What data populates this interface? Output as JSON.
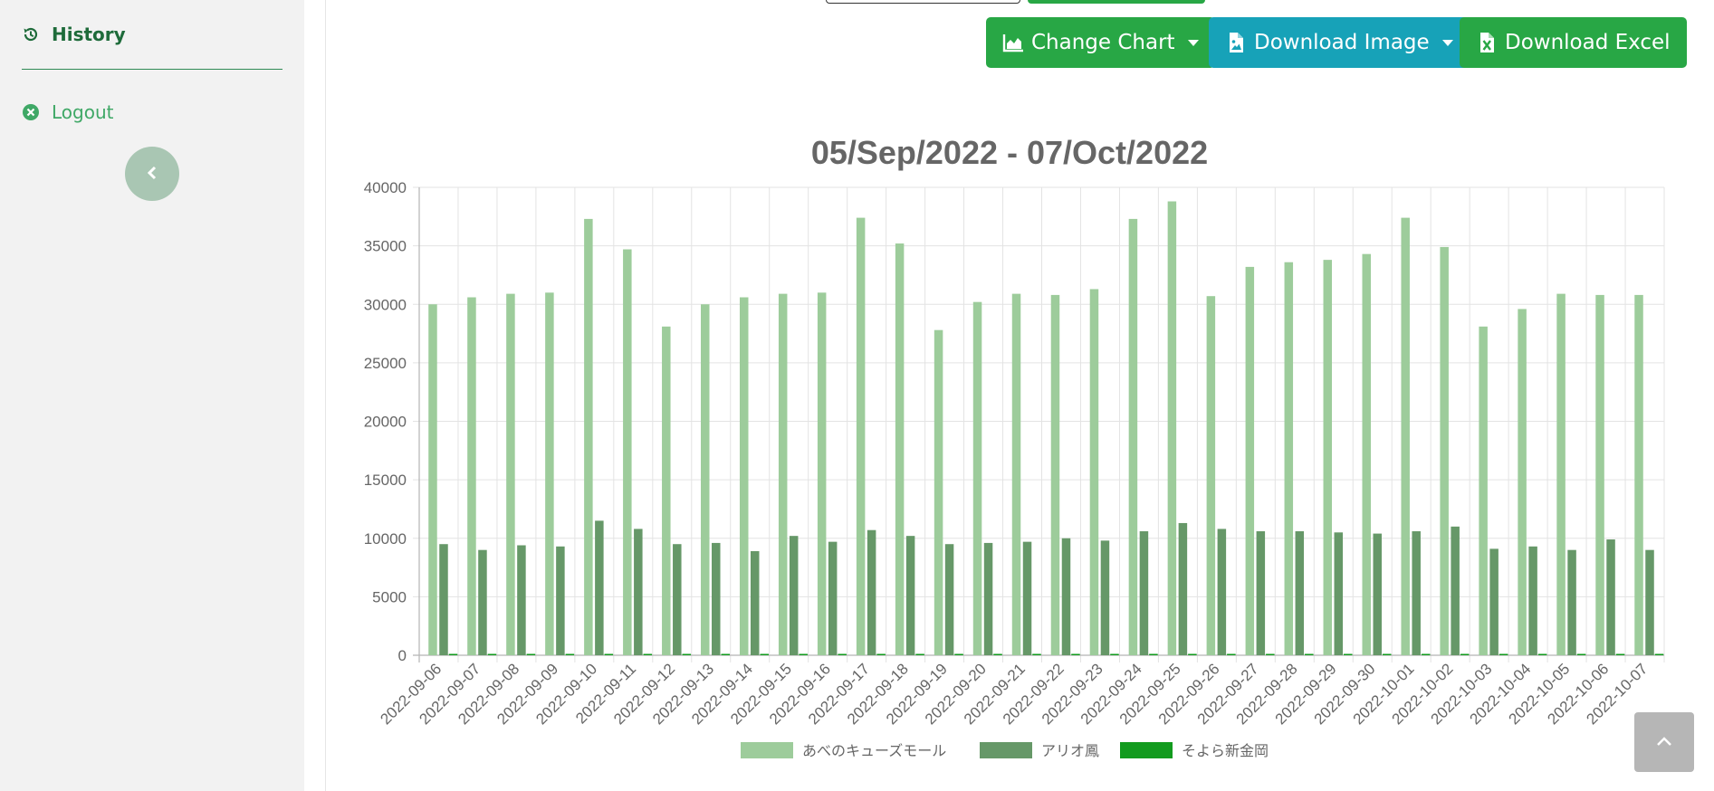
{
  "sidebar": {
    "history_label": "History",
    "logout_label": "Logout"
  },
  "toolbar": {
    "change_chart_label": "Change Chart",
    "download_image_label": "Download Image",
    "download_excel_label": "Download Excel"
  },
  "colors": {
    "accent_green": "#28a745",
    "accent_teal": "#17a2b8",
    "series_1": "#9dcc9b",
    "series_2": "#669868",
    "series_3": "#129b1e"
  },
  "chart_data": {
    "type": "bar",
    "title": "05/Sep/2022 - 07/Oct/2022",
    "xlabel": "",
    "ylabel": "",
    "ylim": [
      0,
      40000
    ],
    "yticks": [
      0,
      5000,
      10000,
      15000,
      20000,
      25000,
      30000,
      35000,
      40000
    ],
    "grid": true,
    "legend": "bottom",
    "categories": [
      "2022-09-06",
      "2022-09-07",
      "2022-09-08",
      "2022-09-09",
      "2022-09-10",
      "2022-09-11",
      "2022-09-12",
      "2022-09-13",
      "2022-09-14",
      "2022-09-15",
      "2022-09-16",
      "2022-09-17",
      "2022-09-18",
      "2022-09-19",
      "2022-09-20",
      "2022-09-21",
      "2022-09-22",
      "2022-09-23",
      "2022-09-24",
      "2022-09-25",
      "2022-09-26",
      "2022-09-27",
      "2022-09-28",
      "2022-09-29",
      "2022-09-30",
      "2022-10-01",
      "2022-10-02",
      "2022-10-03",
      "2022-10-04",
      "2022-10-05",
      "2022-10-06",
      "2022-10-07"
    ],
    "series": [
      {
        "name": "あべのキューズモール",
        "color": "#9dcc9b",
        "values": [
          30000,
          30600,
          30900,
          31000,
          37300,
          34700,
          28100,
          30000,
          30600,
          30900,
          31000,
          37400,
          35200,
          27800,
          30200,
          30900,
          30800,
          31300,
          37300,
          38800,
          30700,
          33200,
          33600,
          33800,
          34300,
          37400,
          34900,
          28100,
          29600,
          30900,
          30800,
          30800
        ]
      },
      {
        "name": "アリオ鳳",
        "color": "#669868",
        "values": [
          9500,
          9000,
          9400,
          9300,
          11500,
          10800,
          9500,
          9600,
          8900,
          10200,
          9700,
          10700,
          10200,
          9500,
          9600,
          9700,
          10000,
          9800,
          10600,
          11300,
          10800,
          10600,
          10600,
          10500,
          10400,
          10600,
          11000,
          9100,
          9300,
          9000,
          9900,
          9000
        ]
      },
      {
        "name": "そよら新金岡",
        "color": "#129b1e",
        "values": [
          50,
          50,
          50,
          50,
          50,
          50,
          50,
          50,
          50,
          50,
          50,
          50,
          50,
          50,
          50,
          50,
          50,
          50,
          50,
          50,
          50,
          50,
          50,
          50,
          50,
          50,
          50,
          50,
          50,
          50,
          50,
          50
        ]
      }
    ]
  }
}
